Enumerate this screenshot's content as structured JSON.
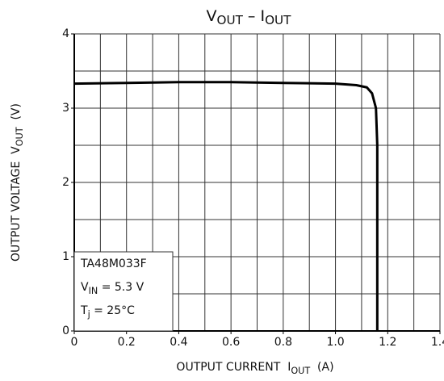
{
  "chart_data": {
    "type": "line",
    "title": [
      {
        "text": "V"
      },
      {
        "text": "OUT",
        "sub": true
      },
      {
        "text": " – "
      },
      {
        "text": "I"
      },
      {
        "text": "OUT",
        "sub": true
      }
    ],
    "x_label": [
      {
        "text": "OUTPUT CURRENT  "
      },
      {
        "text": "I"
      },
      {
        "text": "OUT",
        "sub": true
      },
      {
        "text": "  (A)"
      }
    ],
    "y_label": [
      {
        "text": "OUTPUT VOLTAGE  "
      },
      {
        "text": "V"
      },
      {
        "text": "OUT",
        "sub": true
      },
      {
        "text": "  (V)"
      }
    ],
    "annotation": [
      [
        {
          "text": "TA48M033F"
        }
      ],
      [
        {
          "text": "V"
        },
        {
          "text": "IN",
          "sub": true
        },
        {
          "text": " = 5.3 V"
        }
      ],
      [
        {
          "text": "T"
        },
        {
          "text": "j",
          "sub": true
        },
        {
          "text": " = 25°C"
        }
      ]
    ],
    "x": [
      0,
      0.2,
      0.4,
      0.6,
      0.8,
      1.0,
      1.08,
      1.12,
      1.14,
      1.155,
      1.16,
      1.16
    ],
    "series": [
      {
        "name": "VOUT",
        "color": "#000000",
        "values": [
          3.33,
          3.34,
          3.35,
          3.35,
          3.34,
          3.33,
          3.31,
          3.28,
          3.2,
          3.0,
          2.5,
          0
        ]
      }
    ],
    "xlim": [
      0,
      1.4
    ],
    "ylim": [
      0,
      4
    ],
    "xticks": [
      0,
      0.2,
      0.4,
      0.6,
      0.8,
      {
        "value": 1.0,
        "label": "1.0"
      },
      1.2,
      1.4
    ],
    "yticks": [
      0,
      1,
      2,
      3,
      4
    ],
    "xgrid": [
      0.1,
      0.2,
      0.3,
      0.4,
      0.5,
      0.6,
      0.7,
      0.8,
      0.9,
      1.0,
      1.1,
      1.2,
      1.3,
      1.4
    ],
    "ygrid": [
      0.5,
      1,
      1.5,
      2,
      2.5,
      3,
      3.5,
      4
    ],
    "grid": true
  }
}
